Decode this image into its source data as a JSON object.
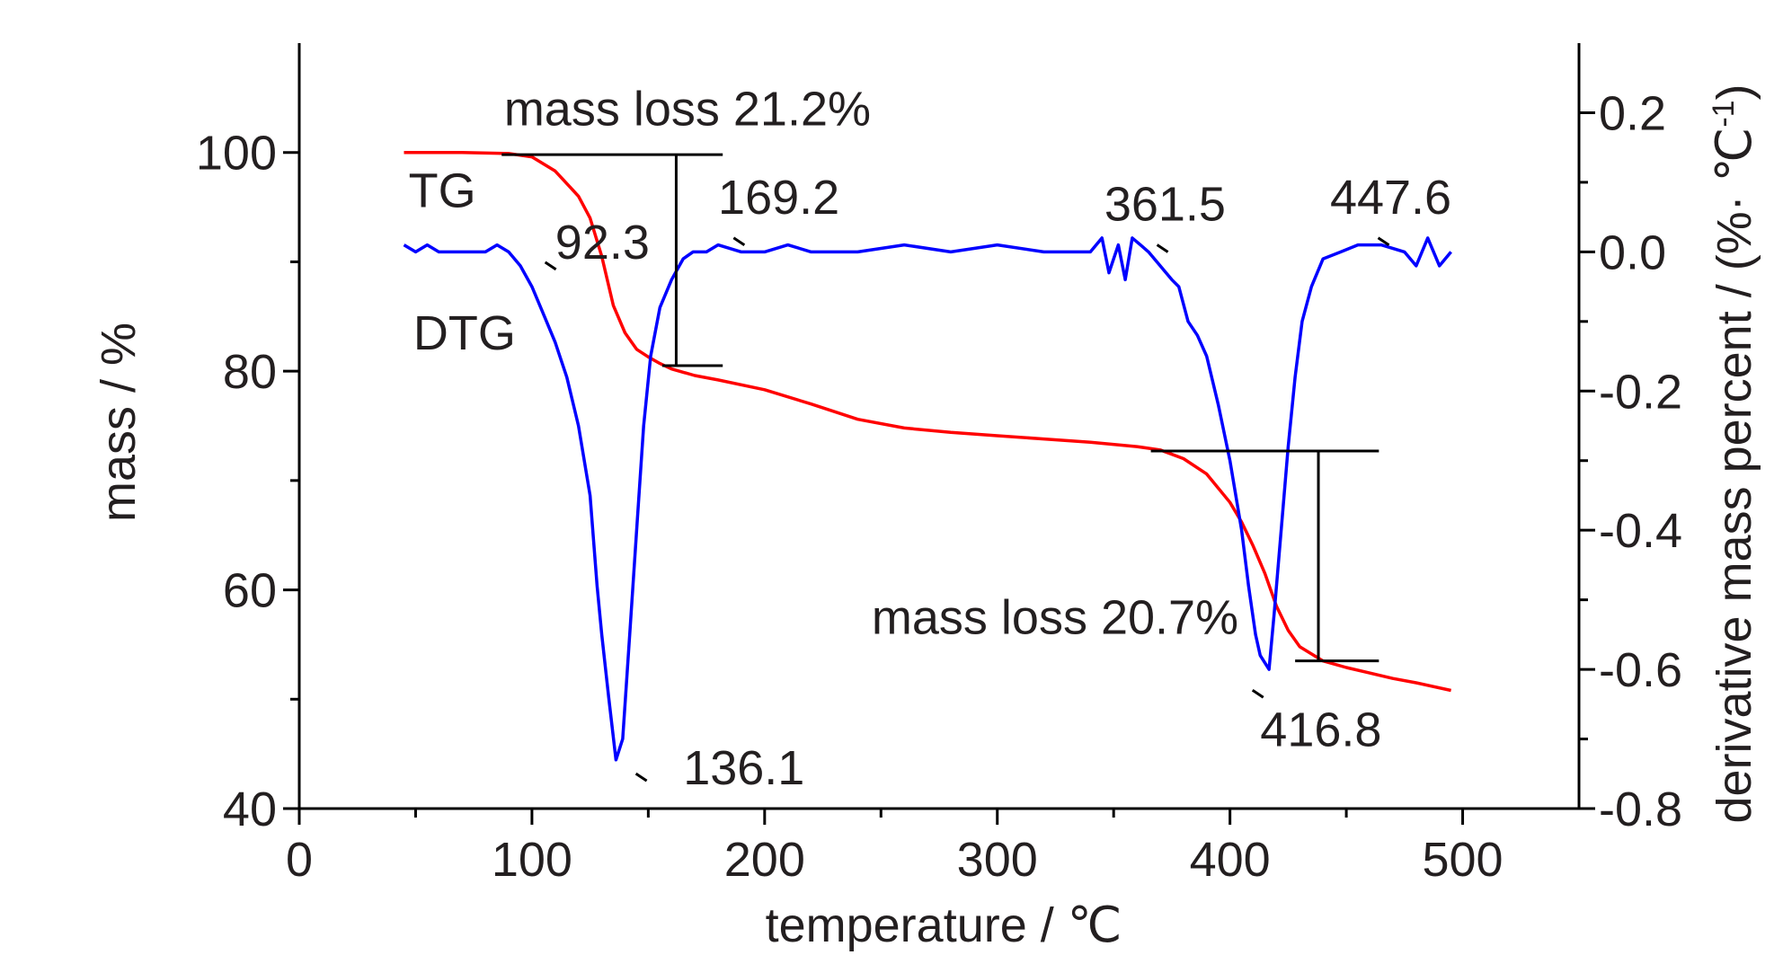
{
  "chart_data": {
    "type": "line",
    "xlabel": "temperature / ℃",
    "ylabel": "mass / %",
    "y2label": "derivative mass percent / (%· ℃",
    "y2label_superscript": "-1",
    "y2label_suffix": ")",
    "xlim": [
      0,
      550
    ],
    "ylim": [
      40,
      110
    ],
    "y2lim": [
      -0.8,
      0.3
    ],
    "x_ticks": [
      0,
      100,
      200,
      300,
      400,
      500
    ],
    "x_tick_labels": [
      "0",
      "100",
      "200",
      "300",
      "400",
      "500"
    ],
    "y_ticks": [
      40,
      60,
      80,
      100
    ],
    "y_tick_labels": [
      "40",
      "60",
      "80",
      "100"
    ],
    "y2_ticks": [
      0.2,
      0.0,
      -0.2,
      -0.4,
      -0.6,
      -0.8
    ],
    "y2_tick_labels": [
      "0.2",
      "0.0",
      "-0.2",
      "-0.4",
      "-0.6",
      "-0.8"
    ],
    "grid": false,
    "series": [
      {
        "name": "TG",
        "axis": "left",
        "color": "#ff0000",
        "x": [
          45,
          70,
          90,
          100,
          110,
          120,
          125,
          130,
          135,
          140,
          145,
          150,
          155,
          160,
          170,
          180,
          200,
          220,
          240,
          260,
          280,
          300,
          320,
          340,
          360,
          370,
          380,
          390,
          400,
          405,
          410,
          415,
          420,
          425,
          430,
          440,
          450,
          460,
          470,
          480,
          495
        ],
        "y": [
          100,
          100,
          99.9,
          99.6,
          98.3,
          96.0,
          94.0,
          90.5,
          86.0,
          83.5,
          82.0,
          81.3,
          80.7,
          80.2,
          79.6,
          79.2,
          78.3,
          77.0,
          75.6,
          74.8,
          74.4,
          74.1,
          73.8,
          73.5,
          73.1,
          72.8,
          72.0,
          70.6,
          68.0,
          66.2,
          64.0,
          61.5,
          58.5,
          56.3,
          54.8,
          53.5,
          52.9,
          52.4,
          51.9,
          51.5,
          50.8
        ]
      },
      {
        "name": "DTG",
        "axis": "right",
        "color": "#0000ff",
        "x": [
          45,
          50,
          55,
          60,
          70,
          80,
          85,
          90,
          95,
          100,
          105,
          110,
          115,
          120,
          125,
          128,
          130,
          133,
          136.1,
          139,
          142,
          145,
          148,
          151,
          155,
          160,
          165,
          169.2,
          175,
          180,
          190,
          200,
          210,
          220,
          240,
          260,
          280,
          300,
          320,
          340,
          345,
          348,
          352,
          355,
          358,
          361.5,
          365,
          370,
          375,
          378,
          382,
          386,
          390,
          395,
          400,
          405,
          408,
          411,
          413,
          416.8,
          419,
          422,
          425,
          428,
          431,
          435,
          440,
          447.6,
          455,
          465,
          475,
          480,
          485,
          490,
          495
        ],
        "y": [
          0.01,
          0.0,
          0.01,
          0.0,
          0.0,
          0.0,
          0.01,
          0.0,
          -0.02,
          -0.05,
          -0.09,
          -0.13,
          -0.18,
          -0.25,
          -0.35,
          -0.48,
          -0.55,
          -0.64,
          -0.73,
          -0.7,
          -0.55,
          -0.4,
          -0.25,
          -0.15,
          -0.08,
          -0.04,
          -0.01,
          0.0,
          0.0,
          0.01,
          0.0,
          0.0,
          0.01,
          0.0,
          0.0,
          0.01,
          0.0,
          0.01,
          0.0,
          0.0,
          0.02,
          -0.03,
          0.01,
          -0.04,
          0.02,
          0.01,
          0.0,
          -0.02,
          -0.04,
          -0.05,
          -0.1,
          -0.12,
          -0.15,
          -0.22,
          -0.3,
          -0.4,
          -0.48,
          -0.55,
          -0.58,
          -0.6,
          -0.52,
          -0.4,
          -0.28,
          -0.18,
          -0.1,
          -0.05,
          -0.01,
          0.0,
          0.01,
          0.01,
          0.0,
          -0.02,
          0.02,
          -0.02,
          0.0
        ]
      }
    ],
    "series_labels": [
      {
        "text": "TG",
        "x": 47,
        "y": 95
      },
      {
        "text": "DTG",
        "x": 49,
        "y": 82
      }
    ],
    "peak_labels": [
      {
        "text": "92.3",
        "x": 110,
        "y2": -0.01,
        "tick_x": 108,
        "tick_y2": -0.02
      },
      {
        "text": "136.1",
        "x": 165,
        "y2": -0.765,
        "tick_x": 147,
        "tick_y2": -0.755
      },
      {
        "text": "169.2",
        "x": 180,
        "y2": 0.055,
        "tick_x": 189,
        "tick_y2": 0.015
      },
      {
        "text": "361.5",
        "x": 346,
        "y2": 0.045,
        "tick_x": 371,
        "tick_y2": 0.005
      },
      {
        "text": "416.8",
        "x": 413,
        "y2": -0.71,
        "tick_x": 412,
        "tick_y2": -0.635
      },
      {
        "text": "447.6",
        "x": 443,
        "y2": 0.055,
        "tick_x": 466,
        "tick_y2": 0.015
      }
    ],
    "annotations": [
      {
        "text": "mass loss 21.2%",
        "x": 88,
        "y": 102.5
      },
      {
        "text": "mass loss 20.7%",
        "x": 246,
        "y": 56
      }
    ],
    "mass_loss_brackets": [
      {
        "x_top_start": 87,
        "x_top_end": 182,
        "y_top": 99.8,
        "x_vertical": 162,
        "x_bottom_start": 156,
        "x_bottom_end": 182,
        "y_bottom": 80.5
      },
      {
        "x_top_start": 366,
        "x_top_end": 464,
        "y_top": 72.7,
        "x_vertical": 438,
        "x_bottom_start": 428,
        "x_bottom_end": 464,
        "y_bottom": 53.5
      }
    ]
  }
}
